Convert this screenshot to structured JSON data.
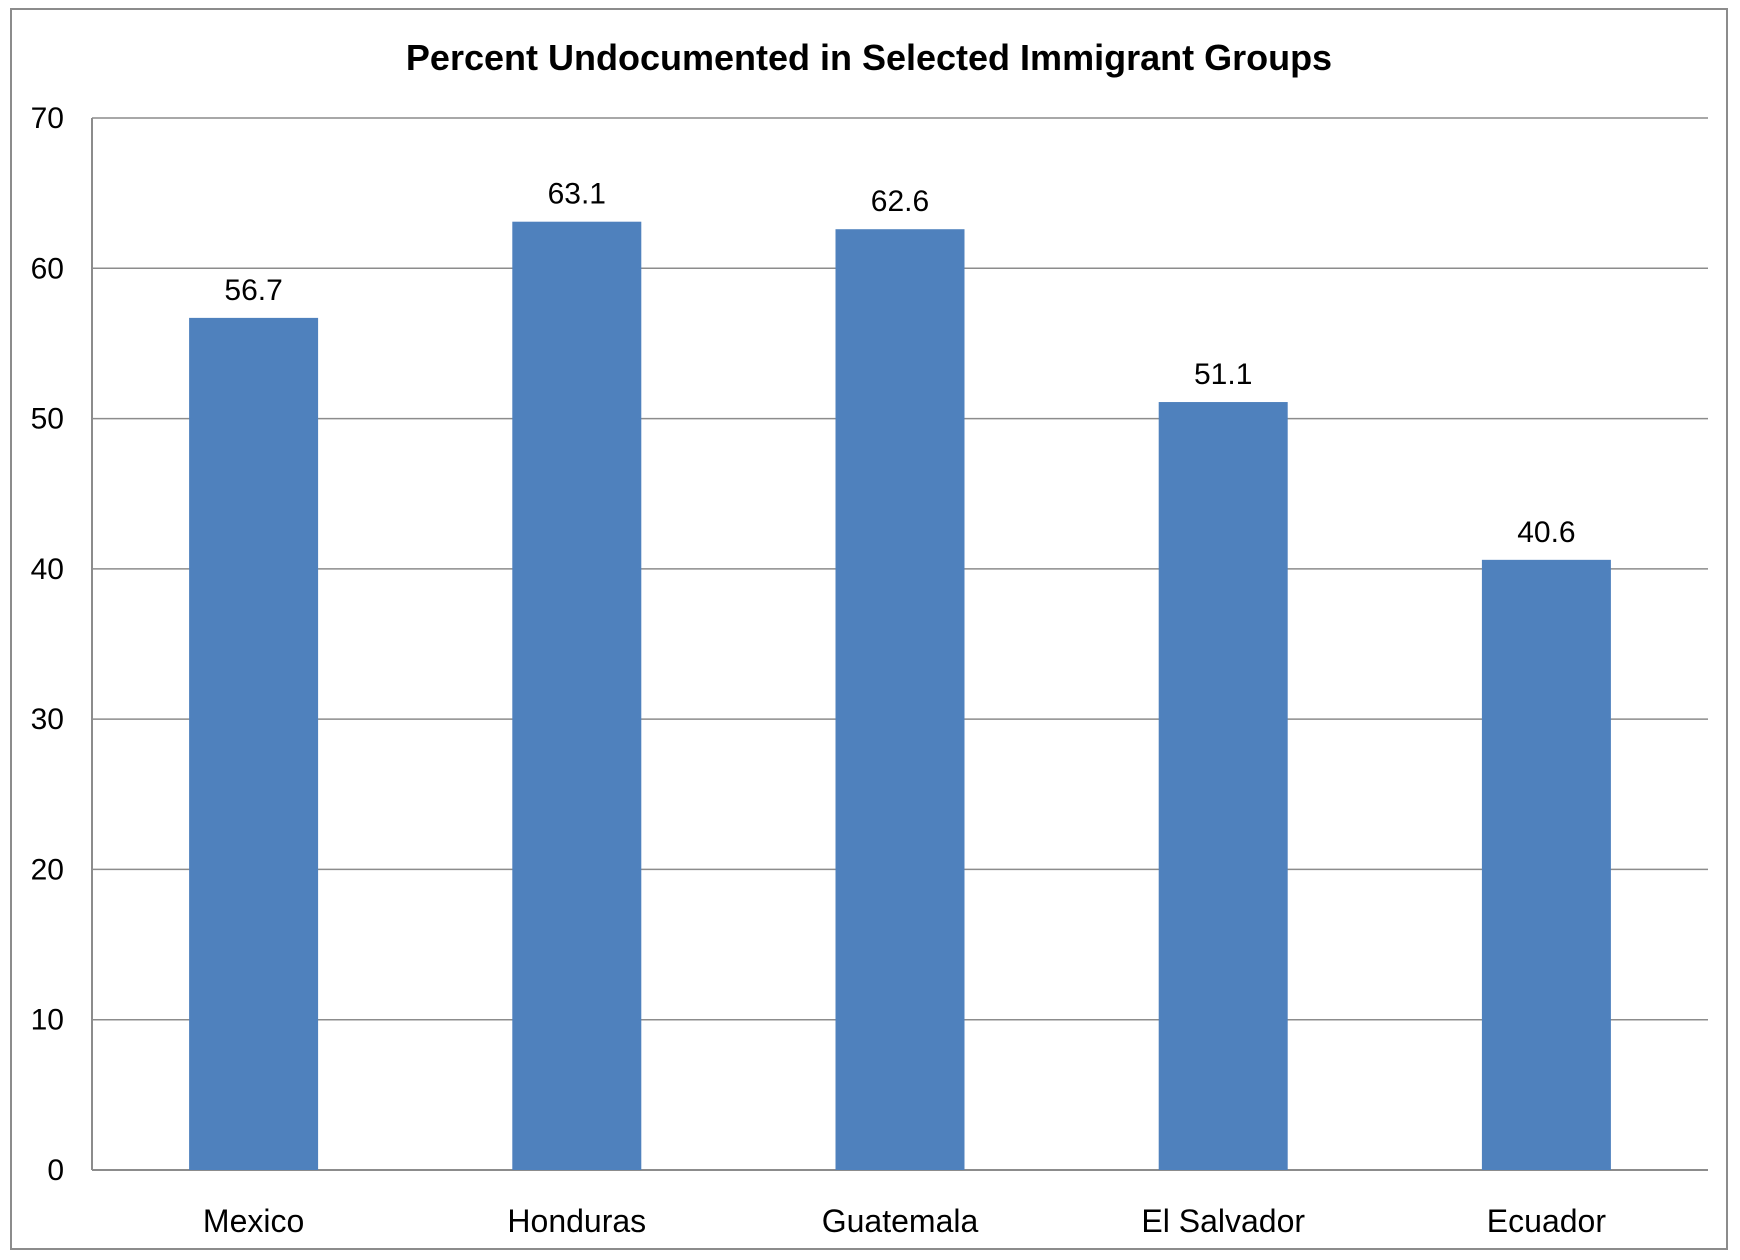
{
  "chart_data": {
    "type": "bar",
    "title": "Percent Undocumented in Selected Immigrant Groups",
    "categories": [
      "Mexico",
      "Honduras",
      "Guatemala",
      "El Salvador",
      "Ecuador"
    ],
    "values": [
      56.7,
      63.1,
      62.6,
      51.1,
      40.6
    ],
    "data_labels": [
      "56.7",
      "63.1",
      "62.6",
      "51.1",
      "40.6"
    ],
    "xlabel": "",
    "ylabel": "",
    "ylim": [
      0,
      70
    ],
    "yticks": [
      0,
      10,
      20,
      30,
      40,
      50,
      60,
      70
    ],
    "grid": true,
    "legend": "none",
    "bar_color": "#4f81bd"
  }
}
